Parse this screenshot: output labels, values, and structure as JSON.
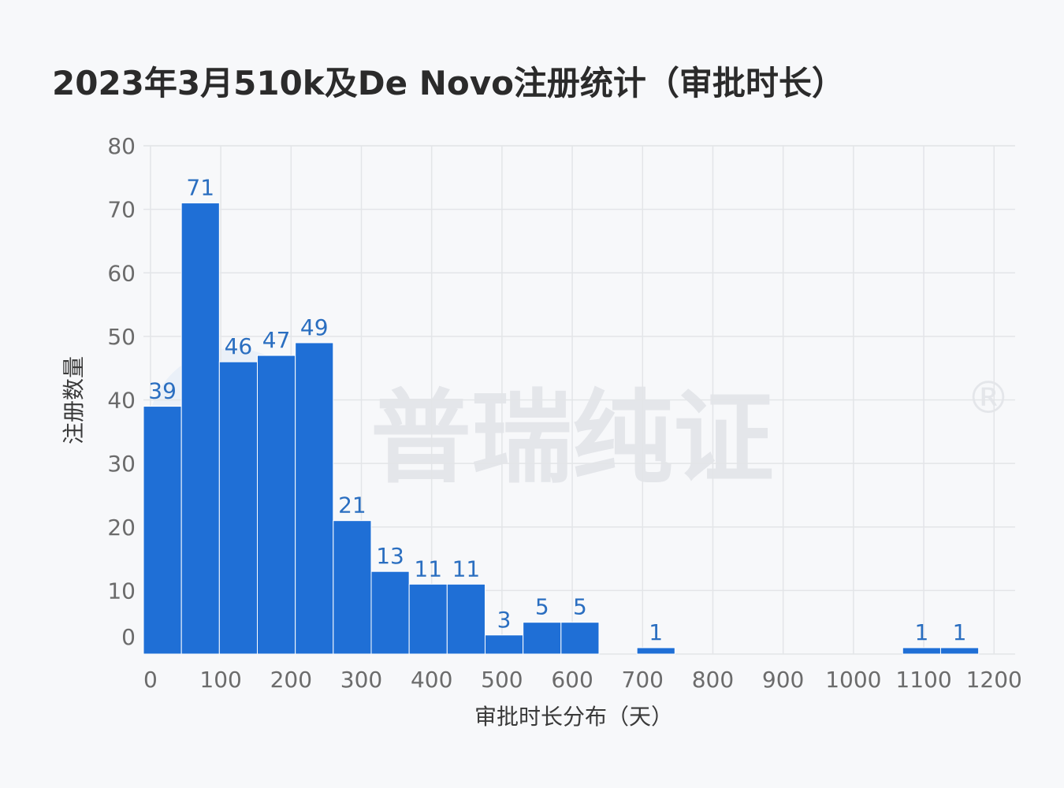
{
  "title": "2023年3月510k及De Novo注册统计（审批时长）",
  "watermark": {
    "text": "普瑞纯证",
    "mark": "®"
  },
  "colors": {
    "bar": "#1f6fd6",
    "bar_stroke": "#ffffff",
    "grid": "#e3e5e8",
    "data_label": "#2a6ec0",
    "background": "#f7f8fa"
  },
  "chart_data": {
    "type": "bar",
    "subtype": "histogram",
    "xlabel": "审批时长分布（天）",
    "ylabel": "注册数量",
    "xlim": [
      -10,
      1230
    ],
    "ylim": [
      0,
      80
    ],
    "x_ticks": [
      0,
      100,
      200,
      300,
      400,
      500,
      600,
      700,
      800,
      900,
      1000,
      1100,
      1200
    ],
    "y_ticks": [
      0,
      10,
      20,
      30,
      40,
      50,
      60,
      70,
      80
    ],
    "bin_width": 54,
    "bins": [
      {
        "start": -10,
        "value": 39
      },
      {
        "start": 44,
        "value": 71
      },
      {
        "start": 98,
        "value": 46
      },
      {
        "start": 152,
        "value": 47
      },
      {
        "start": 206,
        "value": 49
      },
      {
        "start": 260,
        "value": 21
      },
      {
        "start": 314,
        "value": 13
      },
      {
        "start": 368,
        "value": 11
      },
      {
        "start": 422,
        "value": 11
      },
      {
        "start": 476,
        "value": 3
      },
      {
        "start": 530,
        "value": 5
      },
      {
        "start": 584,
        "value": 5
      },
      {
        "start": 692,
        "value": 1
      },
      {
        "start": 1070,
        "value": 1
      },
      {
        "start": 1124,
        "value": 1
      }
    ],
    "grid": true,
    "legend": "none"
  }
}
